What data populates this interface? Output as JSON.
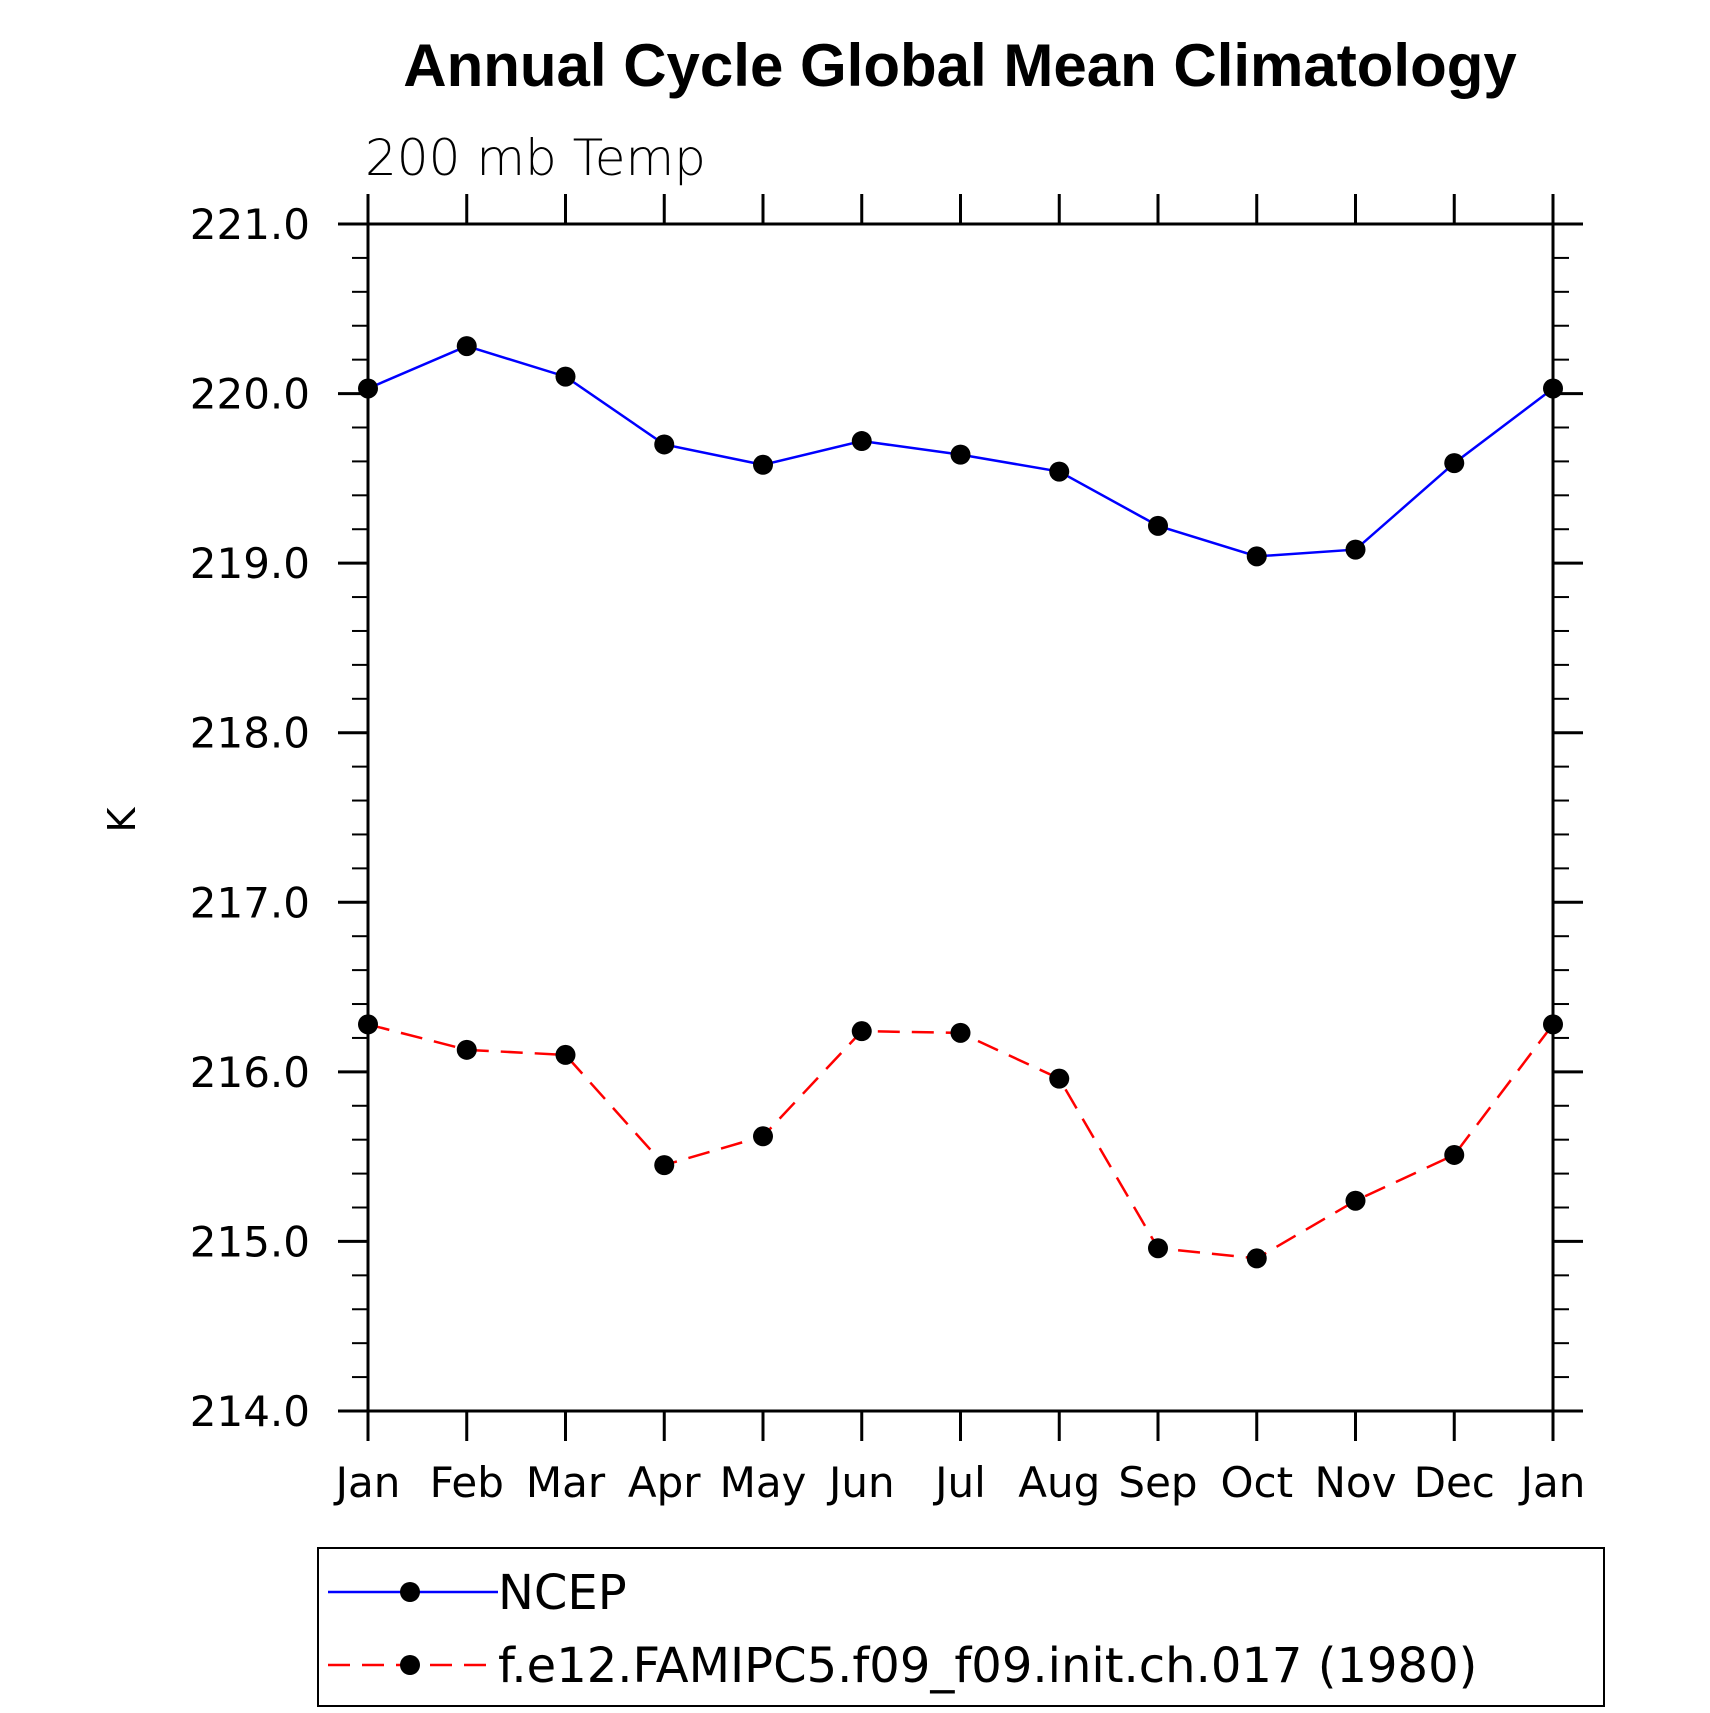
{
  "chart_data": {
    "type": "line",
    "title": "Annual Cycle Global Mean Climatology",
    "subtitle": "200 mb Temp",
    "ylabel": "K",
    "ylim": [
      214.0,
      221.0
    ],
    "yticks": [
      "214.0",
      "215.0",
      "216.0",
      "217.0",
      "218.0",
      "219.0",
      "220.0",
      "221.0"
    ],
    "categories": [
      "Jan",
      "Feb",
      "Mar",
      "Apr",
      "May",
      "Jun",
      "Jul",
      "Aug",
      "Sep",
      "Oct",
      "Nov",
      "Dec",
      "Jan"
    ],
    "legend_position": "bottom",
    "series": [
      {
        "name": "NCEP",
        "color": "#0000ff",
        "dash": "solid",
        "marker": "filled-circle",
        "values": [
          220.03,
          220.28,
          220.1,
          219.7,
          219.58,
          219.72,
          219.64,
          219.54,
          219.22,
          219.04,
          219.08,
          219.59,
          220.03
        ]
      },
      {
        "name": "f.e12.FAMIPC5.f09_f09.init.ch.017 (1980)",
        "color": "#ff0000",
        "dash": "dashed",
        "marker": "filled-circle",
        "values": [
          216.28,
          216.13,
          216.1,
          215.45,
          215.62,
          216.24,
          216.23,
          215.96,
          214.96,
          214.9,
          215.24,
          215.51,
          216.28
        ]
      }
    ]
  }
}
